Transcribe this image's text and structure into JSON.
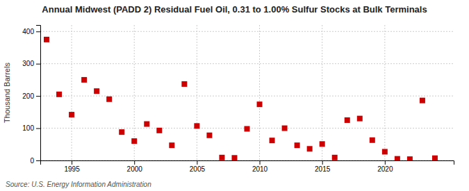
{
  "chart_data": {
    "type": "scatter",
    "title": "Annual Midwest (PADD 2) Residual Fuel Oil, 0.31 to 1.00% Sulfur Stocks at Bulk Terminals",
    "ylabel": "Thousand Barrels",
    "source": "Source: U.S. Energy Information Administration",
    "x": [
      1993,
      1994,
      1995,
      1996,
      1997,
      1998,
      1999,
      2000,
      2001,
      2002,
      2003,
      2004,
      2005,
      2006,
      2007,
      2008,
      2009,
      2010,
      2011,
      2012,
      2013,
      2014,
      2015,
      2016,
      2017,
      2018,
      2019,
      2020,
      2021,
      2022,
      2023,
      2024
    ],
    "values": [
      375,
      205,
      142,
      250,
      215,
      190,
      88,
      60,
      113,
      93,
      47,
      237,
      107,
      78,
      9,
      8,
      98,
      174,
      62,
      100,
      47,
      36,
      51,
      9,
      125,
      130,
      63,
      27,
      5,
      4,
      186,
      7
    ],
    "color": "#cc0000",
    "marker": "square",
    "xlim": [
      1992.5,
      2025.5
    ],
    "ylim": [
      0,
      420
    ],
    "xticks": [
      1995,
      2000,
      2005,
      2010,
      2015,
      2020
    ],
    "yticks": [
      0,
      100,
      200,
      300,
      400
    ],
    "grid": true
  }
}
